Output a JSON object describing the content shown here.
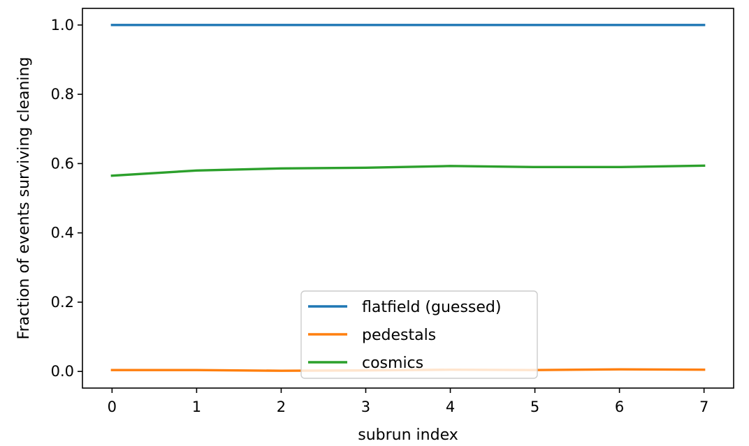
{
  "chart_data": {
    "type": "line",
    "title": "",
    "xlabel": "subrun index",
    "ylabel": "Fraction of events surviving cleaning",
    "xlim": [
      -0.35,
      7.35
    ],
    "ylim": [
      -0.048,
      1.048
    ],
    "x": [
      0,
      1,
      2,
      3,
      4,
      5,
      6,
      7
    ],
    "xticks": [
      0,
      1,
      2,
      3,
      4,
      5,
      6,
      7
    ],
    "xtick_labels": [
      "0",
      "1",
      "2",
      "3",
      "4",
      "5",
      "6",
      "7"
    ],
    "yticks": [
      0.0,
      0.2,
      0.4,
      0.6,
      0.8,
      1.0
    ],
    "ytick_labels": [
      "0.0",
      "0.2",
      "0.4",
      "0.6",
      "0.8",
      "1.0"
    ],
    "grid": false,
    "legend_position": "lower center",
    "series": [
      {
        "name": "flatfield (guessed)",
        "color": "#1f77b4",
        "values": [
          1.0,
          1.0,
          1.0,
          1.0,
          1.0,
          1.0,
          1.0,
          1.0
        ]
      },
      {
        "name": "pedestals",
        "color": "#ff7f0e",
        "values": [
          0.004,
          0.004,
          0.002,
          0.003,
          0.005,
          0.004,
          0.006,
          0.005
        ]
      },
      {
        "name": "cosmics",
        "color": "#2ca02c",
        "values": [
          0.565,
          0.58,
          0.586,
          0.588,
          0.593,
          0.59,
          0.59,
          0.594
        ]
      }
    ]
  }
}
